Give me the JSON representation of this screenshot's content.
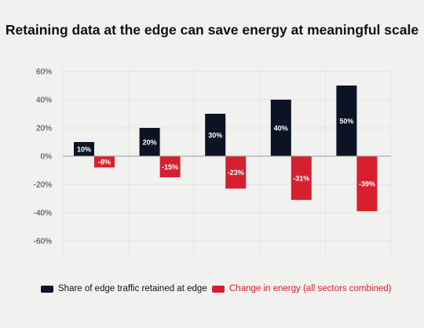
{
  "chart_data": {
    "type": "bar",
    "title": "Retaining data at the edge can save energy at meaningful scale",
    "xlabel": "",
    "ylabel": "",
    "ylim": [
      -70,
      60
    ],
    "yticks": [
      60,
      40,
      20,
      0,
      -20,
      -40,
      -60
    ],
    "ytick_labels": [
      "60%",
      "40%",
      "20%",
      "0%",
      "-20%",
      "-40%",
      "-60%"
    ],
    "grid": true,
    "legend_position": "bottom",
    "series": [
      {
        "name": "Share of edge traffic retained at edge",
        "color": "#0b1324",
        "values": [
          10,
          20,
          30,
          40,
          50
        ],
        "labels": [
          "10%",
          "20%",
          "30%",
          "40%",
          "50%"
        ]
      },
      {
        "name": "Change in energy (all sectors combined)",
        "color": "#d6202f",
        "values": [
          -8,
          -15,
          -23,
          -31,
          -39
        ],
        "labels": [
          "-8%",
          "-15%",
          "-23%",
          "-31%",
          "-39%"
        ]
      }
    ]
  }
}
